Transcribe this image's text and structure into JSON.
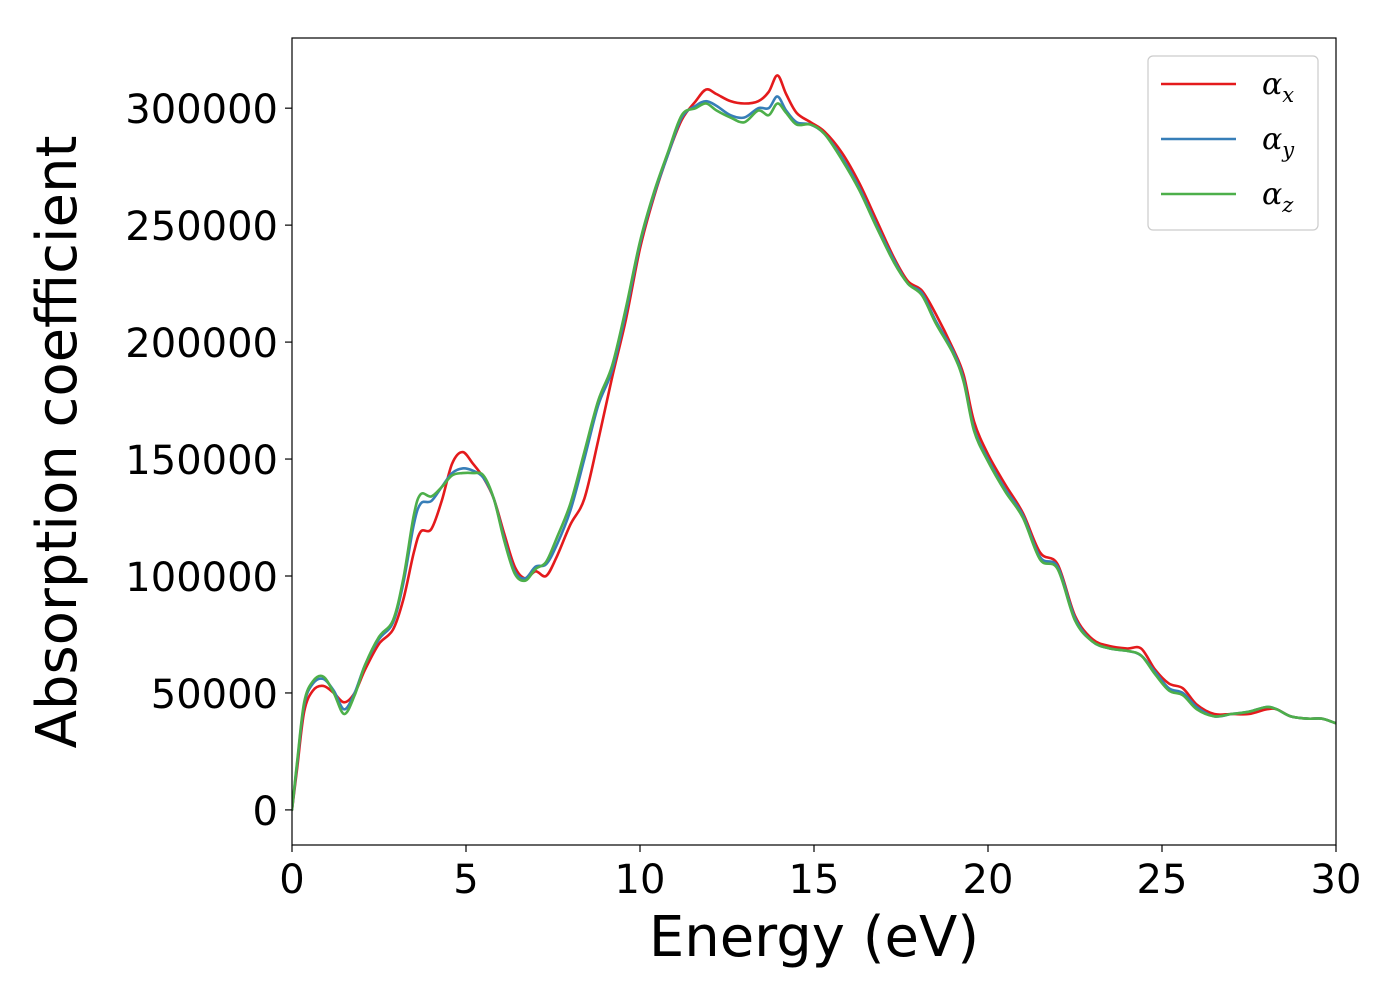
{
  "chart_data": {
    "type": "line",
    "title": "",
    "xlabel": "Energy (eV)",
    "ylabel": "Absorption coefficient",
    "xlim": [
      0,
      30
    ],
    "ylim": [
      -15000,
      330000
    ],
    "xticks": [
      0,
      5,
      10,
      15,
      20,
      25,
      30
    ],
    "xtick_labels": [
      "0",
      "5",
      "10",
      "15",
      "20",
      "25",
      "30"
    ],
    "yticks": [
      0,
      50000,
      100000,
      150000,
      200000,
      250000,
      300000
    ],
    "ytick_labels": [
      "0",
      "50000",
      "100000",
      "150000",
      "200000",
      "250000",
      "300000"
    ],
    "grid": false,
    "legend_position": "top-right",
    "series": [
      {
        "name": "αx",
        "legend_base": "α",
        "legend_sub": "x",
        "color": "#e41a1c",
        "points": [
          [
            0,
            0
          ],
          [
            0.15,
            18000
          ],
          [
            0.35,
            42000
          ],
          [
            0.6,
            51000
          ],
          [
            0.9,
            53000
          ],
          [
            1.2,
            50000
          ],
          [
            1.5,
            46000
          ],
          [
            1.8,
            50000
          ],
          [
            2.1,
            60000
          ],
          [
            2.5,
            71000
          ],
          [
            2.9,
            77000
          ],
          [
            3.2,
            90000
          ],
          [
            3.5,
            110000
          ],
          [
            3.7,
            119000
          ],
          [
            4.0,
            120000
          ],
          [
            4.3,
            132000
          ],
          [
            4.6,
            148000
          ],
          [
            4.9,
            153000
          ],
          [
            5.2,
            148000
          ],
          [
            5.5,
            142000
          ],
          [
            5.8,
            133000
          ],
          [
            6.1,
            118000
          ],
          [
            6.4,
            104000
          ],
          [
            6.7,
            99000
          ],
          [
            7.0,
            102000
          ],
          [
            7.3,
            100000
          ],
          [
            7.6,
            108000
          ],
          [
            8.0,
            122000
          ],
          [
            8.4,
            133000
          ],
          [
            8.8,
            158000
          ],
          [
            9.2,
            185000
          ],
          [
            9.6,
            210000
          ],
          [
            10.0,
            240000
          ],
          [
            10.4,
            262000
          ],
          [
            10.8,
            280000
          ],
          [
            11.2,
            295000
          ],
          [
            11.6,
            303000
          ],
          [
            11.9,
            308000
          ],
          [
            12.2,
            306000
          ],
          [
            12.6,
            303000
          ],
          [
            13.0,
            302000
          ],
          [
            13.4,
            303000
          ],
          [
            13.7,
            307000
          ],
          [
            13.95,
            314000
          ],
          [
            14.2,
            306000
          ],
          [
            14.5,
            298000
          ],
          [
            14.9,
            294000
          ],
          [
            15.3,
            290000
          ],
          [
            15.8,
            281000
          ],
          [
            16.3,
            268000
          ],
          [
            16.8,
            252000
          ],
          [
            17.3,
            236000
          ],
          [
            17.7,
            226000
          ],
          [
            18.1,
            222000
          ],
          [
            18.5,
            212000
          ],
          [
            19.0,
            197000
          ],
          [
            19.3,
            186000
          ],
          [
            19.6,
            166000
          ],
          [
            20.0,
            152000
          ],
          [
            20.5,
            139000
          ],
          [
            21.0,
            127000
          ],
          [
            21.5,
            110000
          ],
          [
            22.0,
            105000
          ],
          [
            22.5,
            83000
          ],
          [
            23.0,
            73000
          ],
          [
            23.5,
            70000
          ],
          [
            24.0,
            69000
          ],
          [
            24.4,
            69000
          ],
          [
            24.8,
            60000
          ],
          [
            25.2,
            54000
          ],
          [
            25.6,
            52000
          ],
          [
            26.0,
            45000
          ],
          [
            26.5,
            41000
          ],
          [
            27.0,
            41000
          ],
          [
            27.5,
            41000
          ],
          [
            28.0,
            43000
          ],
          [
            28.3,
            43000
          ],
          [
            28.7,
            40000
          ],
          [
            29.2,
            39000
          ],
          [
            29.6,
            39000
          ],
          [
            30.0,
            37000
          ]
        ]
      },
      {
        "name": "αy",
        "legend_base": "α",
        "legend_sub": "y",
        "color": "#377eb8",
        "points": [
          [
            0,
            0
          ],
          [
            0.15,
            20000
          ],
          [
            0.35,
            45000
          ],
          [
            0.6,
            54000
          ],
          [
            0.9,
            56000
          ],
          [
            1.2,
            51000
          ],
          [
            1.5,
            43000
          ],
          [
            1.8,
            50000
          ],
          [
            2.1,
            62000
          ],
          [
            2.5,
            73000
          ],
          [
            2.9,
            80000
          ],
          [
            3.2,
            97000
          ],
          [
            3.5,
            122000
          ],
          [
            3.7,
            131000
          ],
          [
            4.0,
            132000
          ],
          [
            4.3,
            138000
          ],
          [
            4.6,
            144000
          ],
          [
            4.9,
            146000
          ],
          [
            5.2,
            145000
          ],
          [
            5.5,
            142000
          ],
          [
            5.8,
            133000
          ],
          [
            6.1,
            116000
          ],
          [
            6.4,
            102000
          ],
          [
            6.7,
            99000
          ],
          [
            7.0,
            104000
          ],
          [
            7.3,
            105000
          ],
          [
            7.6,
            113000
          ],
          [
            8.0,
            128000
          ],
          [
            8.4,
            150000
          ],
          [
            8.8,
            173000
          ],
          [
            9.2,
            188000
          ],
          [
            9.6,
            213000
          ],
          [
            10.0,
            242000
          ],
          [
            10.4,
            263000
          ],
          [
            10.8,
            280000
          ],
          [
            11.2,
            296000
          ],
          [
            11.6,
            301000
          ],
          [
            11.9,
            303000
          ],
          [
            12.2,
            301000
          ],
          [
            12.6,
            297000
          ],
          [
            13.0,
            296000
          ],
          [
            13.4,
            300000
          ],
          [
            13.7,
            300000
          ],
          [
            13.95,
            305000
          ],
          [
            14.2,
            299000
          ],
          [
            14.5,
            294000
          ],
          [
            14.9,
            293000
          ],
          [
            15.3,
            289000
          ],
          [
            15.8,
            279000
          ],
          [
            16.3,
            266000
          ],
          [
            16.8,
            250000
          ],
          [
            17.3,
            235000
          ],
          [
            17.7,
            225000
          ],
          [
            18.1,
            221000
          ],
          [
            18.5,
            209000
          ],
          [
            19.0,
            196000
          ],
          [
            19.3,
            184000
          ],
          [
            19.6,
            163000
          ],
          [
            20.0,
            150000
          ],
          [
            20.5,
            137000
          ],
          [
            21.0,
            126000
          ],
          [
            21.5,
            108000
          ],
          [
            22.0,
            104000
          ],
          [
            22.5,
            82000
          ],
          [
            23.0,
            72000
          ],
          [
            23.5,
            69000
          ],
          [
            24.0,
            68000
          ],
          [
            24.4,
            66000
          ],
          [
            24.8,
            59000
          ],
          [
            25.2,
            52000
          ],
          [
            25.6,
            50000
          ],
          [
            26.0,
            44000
          ],
          [
            26.5,
            40000
          ],
          [
            27.0,
            41000
          ],
          [
            27.5,
            42000
          ],
          [
            28.0,
            44000
          ],
          [
            28.3,
            43000
          ],
          [
            28.7,
            40000
          ],
          [
            29.2,
            39000
          ],
          [
            29.6,
            39000
          ],
          [
            30.0,
            37000
          ]
        ]
      },
      {
        "name": "αz",
        "legend_base": "α",
        "legend_sub": "z",
        "color": "#4daf4a",
        "points": [
          [
            0,
            0
          ],
          [
            0.15,
            21000
          ],
          [
            0.35,
            46000
          ],
          [
            0.6,
            55000
          ],
          [
            0.9,
            57000
          ],
          [
            1.2,
            50000
          ],
          [
            1.5,
            41000
          ],
          [
            1.8,
            49000
          ],
          [
            2.1,
            62000
          ],
          [
            2.5,
            74000
          ],
          [
            2.9,
            81000
          ],
          [
            3.2,
            99000
          ],
          [
            3.5,
            126000
          ],
          [
            3.7,
            135000
          ],
          [
            4.0,
            134000
          ],
          [
            4.3,
            138000
          ],
          [
            4.6,
            143000
          ],
          [
            4.9,
            144000
          ],
          [
            5.2,
            144000
          ],
          [
            5.5,
            143000
          ],
          [
            5.8,
            133000
          ],
          [
            6.1,
            115000
          ],
          [
            6.4,
            101000
          ],
          [
            6.7,
            98000
          ],
          [
            7.0,
            103000
          ],
          [
            7.3,
            106000
          ],
          [
            7.6,
            116000
          ],
          [
            8.0,
            131000
          ],
          [
            8.4,
            153000
          ],
          [
            8.8,
            175000
          ],
          [
            9.2,
            190000
          ],
          [
            9.6,
            215000
          ],
          [
            10.0,
            243000
          ],
          [
            10.4,
            264000
          ],
          [
            10.8,
            281000
          ],
          [
            11.2,
            297000
          ],
          [
            11.6,
            300000
          ],
          [
            11.9,
            302000
          ],
          [
            12.2,
            299000
          ],
          [
            12.6,
            296000
          ],
          [
            13.0,
            294000
          ],
          [
            13.4,
            299000
          ],
          [
            13.7,
            297000
          ],
          [
            13.95,
            302000
          ],
          [
            14.2,
            298000
          ],
          [
            14.5,
            293000
          ],
          [
            14.9,
            293000
          ],
          [
            15.3,
            289000
          ],
          [
            15.8,
            278000
          ],
          [
            16.3,
            265000
          ],
          [
            16.8,
            249000
          ],
          [
            17.3,
            234000
          ],
          [
            17.7,
            225000
          ],
          [
            18.1,
            220000
          ],
          [
            18.5,
            208000
          ],
          [
            19.0,
            195000
          ],
          [
            19.3,
            183000
          ],
          [
            19.6,
            162000
          ],
          [
            20.0,
            149000
          ],
          [
            20.5,
            136000
          ],
          [
            21.0,
            125000
          ],
          [
            21.5,
            107000
          ],
          [
            22.0,
            103000
          ],
          [
            22.5,
            81000
          ],
          [
            23.0,
            72000
          ],
          [
            23.5,
            69000
          ],
          [
            24.0,
            68000
          ],
          [
            24.4,
            66000
          ],
          [
            24.8,
            58000
          ],
          [
            25.2,
            51000
          ],
          [
            25.6,
            49000
          ],
          [
            26.0,
            43000
          ],
          [
            26.5,
            40000
          ],
          [
            27.0,
            41000
          ],
          [
            27.5,
            42000
          ],
          [
            28.0,
            44000
          ],
          [
            28.3,
            43000
          ],
          [
            28.7,
            40000
          ],
          [
            29.2,
            39000
          ],
          [
            29.6,
            39000
          ],
          [
            30.0,
            37000
          ]
        ]
      }
    ]
  }
}
